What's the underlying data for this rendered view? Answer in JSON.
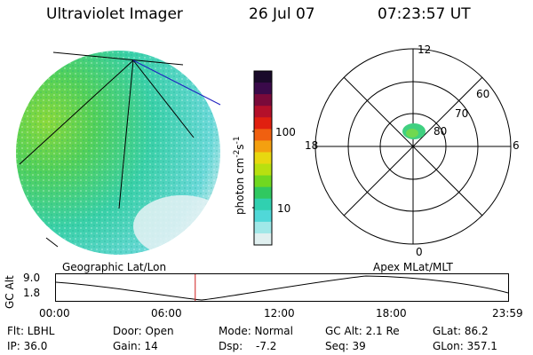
{
  "header": {
    "title": "Ultraviolet Imager",
    "date": "26 Jul 07",
    "time": "07:23:57 UT"
  },
  "colorbar": {
    "unit_label": "photon cm",
    "unit_exp1": "-2",
    "unit_s": "s",
    "unit_exp2": "-1",
    "ticks": [
      "100",
      "10"
    ],
    "colors": [
      "#1a0a2a",
      "#3a0a4a",
      "#7a0a3a",
      "#b4102a",
      "#e02010",
      "#f06010",
      "#f4a010",
      "#e8d810",
      "#b8e010",
      "#70d820",
      "#30c860",
      "#30d0b0",
      "#50d8d8",
      "#a0e8e8",
      "#e0f0f0"
    ]
  },
  "polar": {
    "mlt_labels": [
      "12",
      "18",
      "6",
      "0"
    ],
    "lat_labels": [
      "60",
      "70",
      "80"
    ],
    "mlat_rings": [
      60,
      70,
      80
    ]
  },
  "timeline": {
    "left_label": "Geographic Lat/Lon",
    "right_label": "Apex MLat/MLT",
    "axis_label": "GC Alt",
    "y_ticks": [
      "9.0",
      "1.8"
    ],
    "x_ticks": [
      "00:00",
      "06:00",
      "12:00",
      "18:00",
      "23:59"
    ],
    "current_time_fraction": 0.308
  },
  "info": {
    "row1": [
      "Flt: LBHL",
      "Door: Open",
      "Mode: Normal",
      "GC Alt: 2.1 Re",
      "GLat: 86.2"
    ],
    "row2": [
      "IP: 36.0",
      "Gain: 14",
      "Dsp:",
      "-7.2",
      "Seq: 39",
      "GLon: 357.1"
    ]
  }
}
